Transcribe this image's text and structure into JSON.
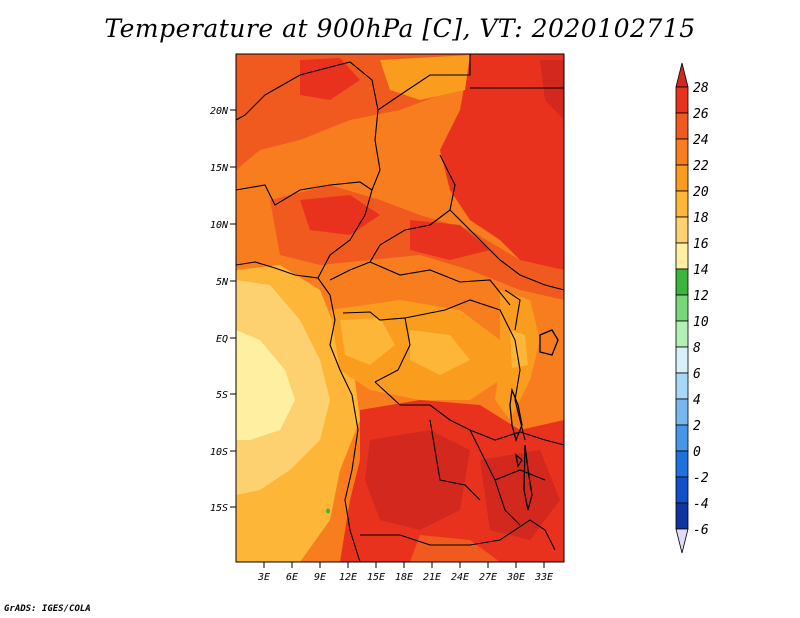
{
  "title": "Temperature at 900hPa [C], VT: 2020102715",
  "footer": "GrADS: IGES/COLA",
  "map": {
    "lat_ticks": [
      "20N",
      "15N",
      "10N",
      "5N",
      "EQ",
      "5S",
      "10S",
      "15S"
    ],
    "lon_ticks": [
      "3E",
      "6E",
      "9E",
      "12E",
      "15E",
      "18E",
      "21E",
      "24E",
      "27E",
      "30E",
      "33E"
    ]
  },
  "colorbar": {
    "labels": [
      "28",
      "26",
      "24",
      "22",
      "20",
      "18",
      "16",
      "14",
      "12",
      "10",
      "8",
      "6",
      "4",
      "2",
      "0",
      "-2",
      "-4",
      "-6"
    ],
    "colors": [
      "#e8321e",
      "#f05a1e",
      "#f87d1e",
      "#fa9c1e",
      "#fdb637",
      "#fdd070",
      "#fef0a0",
      "#3cb53c",
      "#78d878",
      "#b4f0b4",
      "#d8f0f8",
      "#a8d8f8",
      "#78b8f0",
      "#4896e8",
      "#2070e0",
      "#1050c8",
      "#1034a0",
      "#0a1478"
    ],
    "top_color": "#d2281e",
    "bottom_color": "#e0dcf8"
  }
}
